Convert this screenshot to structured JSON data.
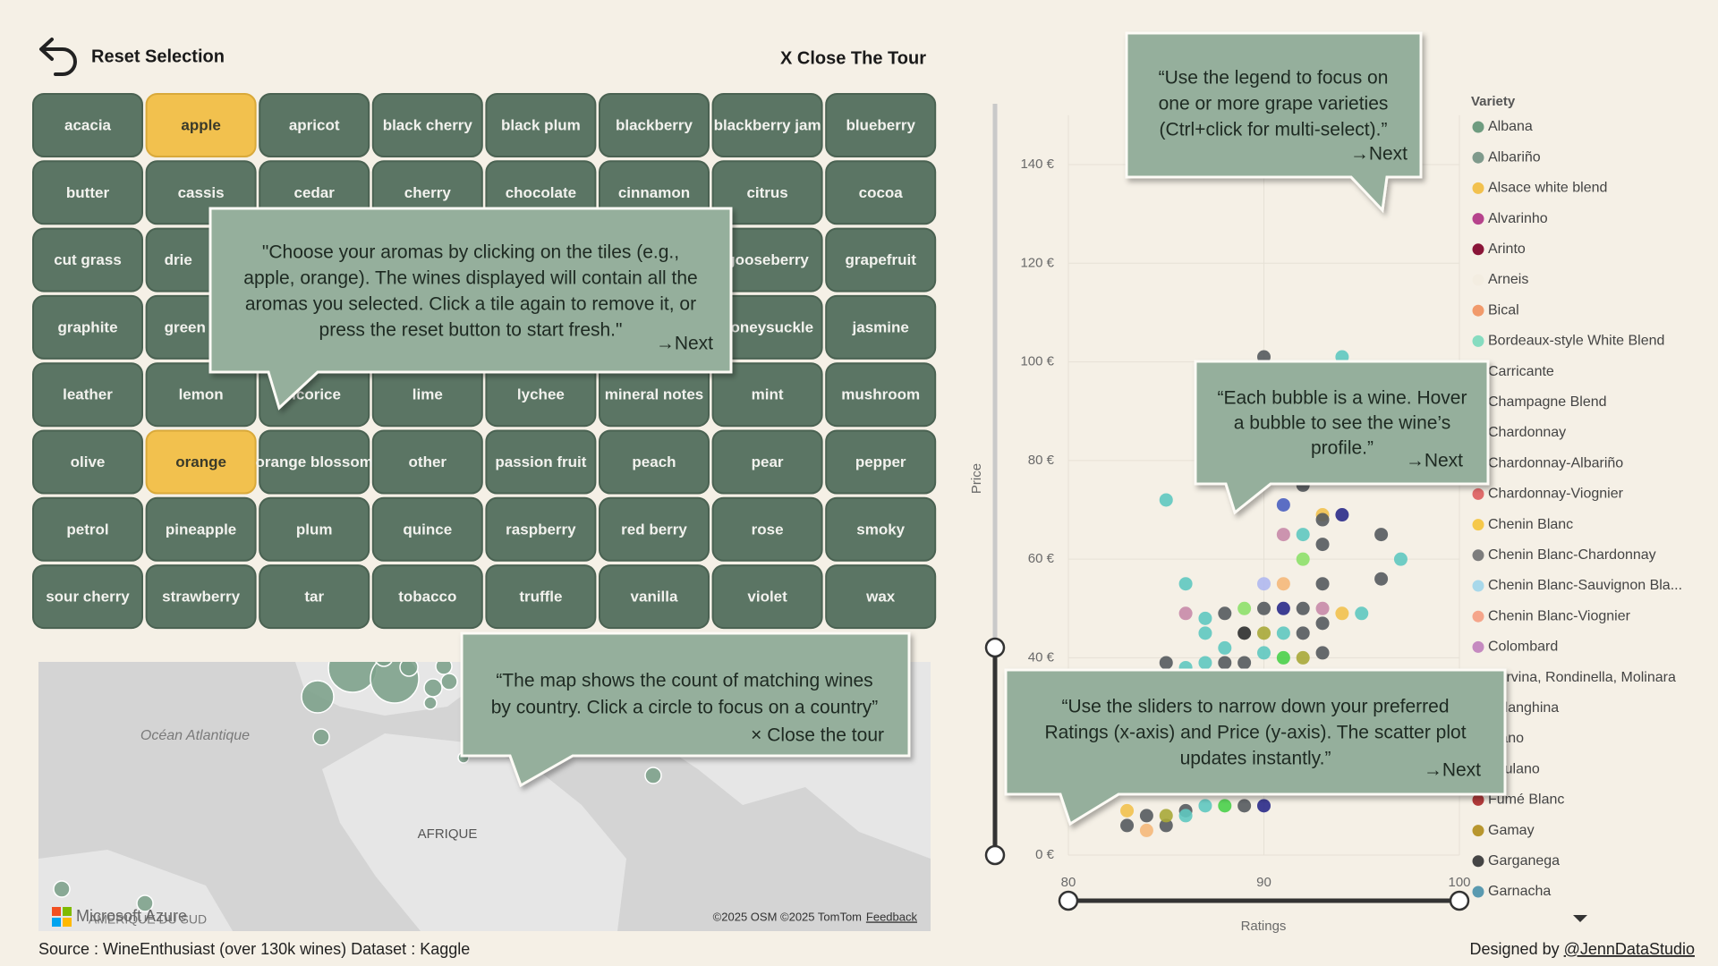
{
  "header": {
    "reset": "Reset Selection",
    "close": "X Close The Tour"
  },
  "tiles": [
    "acacia",
    "apple",
    "apricot",
    "black cherry",
    "black plum",
    "blackberry",
    "blackberry jam",
    "blueberry",
    "butter",
    "cassis",
    "cedar",
    "cherry",
    "chocolate",
    "cinnamon",
    "citrus",
    "cocoa",
    "cut grass",
    "drie",
    null,
    null,
    null,
    null,
    "gooseberry",
    "grapefruit",
    "graphite",
    "green a",
    null,
    null,
    null,
    null,
    "honeysuckle",
    "jasmine",
    "leather",
    "lemon",
    "licorice",
    "lime",
    "lychee",
    "mineral notes",
    "mint",
    "mushroom",
    "olive",
    "orange",
    "orange blossom",
    "other",
    "passion fruit",
    "peach",
    "pear",
    "pepper",
    "petrol",
    "pineapple",
    "plum",
    "quince",
    "raspberry",
    "red berry",
    "rose",
    "smoky",
    "sour cherry",
    "strawberry",
    "tar",
    "tobacco",
    "truffle",
    "vanilla",
    "violet",
    "wax"
  ],
  "selected_tiles": [
    1,
    41
  ],
  "tile_colors": {
    "default": "#5b7564",
    "selected": "#f2c14e"
  },
  "callouts": [
    {
      "lines": [
        "\"Choose your aromas by clicking on the tiles (e.g.,",
        "apple, orange). The wines displayed will contain all the",
        "aromas you selected. Click a tile again to remove it, or",
        "press the reset button to start fresh.\""
      ],
      "action": "→Next"
    },
    {
      "lines": [
        "“Use the legend to focus on",
        "one or more grape varieties",
        "(Ctrl+click for multi-select).”"
      ],
      "action": "→Next"
    },
    {
      "lines": [
        "“Each bubble is a wine. Hover",
        "a bubble to see the wine’s",
        "profile.”"
      ],
      "action": "→Next"
    },
    {
      "lines": [
        "“The map shows the count of matching wines",
        "by country. Click a circle to focus on a country”"
      ],
      "action": "× Close the tour"
    },
    {
      "lines": [
        "“Use the sliders to narrow down your preferred",
        "Ratings (x-axis) and Price (y-axis). The scatter plot",
        "updates instantly.”"
      ],
      "action": "→Next"
    }
  ],
  "map": {
    "ocean": "Océan Atlantique",
    "africa": "AFRIQUE",
    "south_america": "AMÉRIQUE DU SUD",
    "brand": "Microsoft Azure",
    "credits": "©2025 OSM  ©2025 TomTom",
    "feedback": "Feedback"
  },
  "chart_data": {
    "type": "scatter",
    "x_label": "Ratings",
    "y_label": "Price",
    "xlim": [
      80,
      100
    ],
    "xticks": [
      80,
      90,
      100
    ],
    "ylim": [
      0,
      150
    ],
    "yticks": [
      {
        "value": 0,
        "label": "0 €"
      },
      {
        "value": 20,
        "label": "20 €"
      },
      {
        "value": 40,
        "label": "40 €"
      },
      {
        "value": 60,
        "label": "60 €"
      },
      {
        "value": 80,
        "label": "80 €"
      },
      {
        "value": 100,
        "label": "100 €"
      },
      {
        "value": 120,
        "label": "120 €"
      },
      {
        "value": 140,
        "label": "140 €"
      }
    ],
    "grid": true,
    "x": [
      85,
      90,
      94,
      91,
      92,
      93,
      93,
      94,
      91,
      92,
      93,
      96,
      97,
      92,
      96,
      86,
      90,
      91,
      93,
      86,
      87,
      88,
      89,
      90,
      91,
      92,
      93,
      94,
      95,
      93,
      87,
      89,
      90,
      91,
      92,
      88,
      90,
      91,
      92,
      93,
      85,
      86,
      87,
      88,
      89,
      83,
      84,
      85,
      86,
      87,
      88,
      89,
      90,
      83,
      84,
      85,
      86
    ],
    "values": [
      72,
      101,
      101,
      71,
      75,
      69,
      68,
      69,
      65,
      65,
      63,
      65,
      60,
      60,
      56,
      55,
      55,
      55,
      55,
      49,
      48,
      49,
      50,
      50,
      50,
      50,
      50,
      49,
      49,
      47,
      45,
      45,
      45,
      45,
      45,
      42,
      41,
      40,
      40,
      41,
      39,
      38,
      39,
      39,
      39,
      6,
      5,
      6,
      9,
      10,
      10,
      10,
      10,
      9,
      8,
      8,
      8
    ],
    "point_colors": [
      "#5fc8c0",
      "#555a5e",
      "#5fc8c0",
      "#4a5fc0",
      "#555a5e",
      "#f2c14e",
      "#555a5e",
      "#2a2a8a",
      "#c88aa8",
      "#5fc8c0",
      "#555a5e",
      "#555a5e",
      "#5fc8c0",
      "#8ee06a",
      "#555a5e",
      "#5fc8c0",
      "#b0b8f0",
      "#f5b87a",
      "#555a5e",
      "#c88aa8",
      "#5fc8c0",
      "#555a5e",
      "#8ee06a",
      "#555a5e",
      "#2a2a8a",
      "#555a5e",
      "#c88aa8",
      "#f2c14e",
      "#5fc8c0",
      "#555a5e",
      "#5fc8c0",
      "#2e2e2e",
      "#a8a838",
      "#5fc8c0",
      "#555a5e",
      "#5fc8c0",
      "#5fc8c0",
      "#4ad04a",
      "#a8a838",
      "#555a5e",
      "#555a5e",
      "#5fc8c0",
      "#5fc8c0",
      "#555a5e",
      "#555a5e",
      "#555a5e",
      "#f5b87a",
      "#555a5e",
      "#555a5e",
      "#5fc8c0",
      "#4ad04a",
      "#555a5e",
      "#2a2a8a",
      "#f2c14e",
      "#555a5e",
      "#a8a838",
      "#5fc8c0"
    ],
    "legend": {
      "title": "Variety",
      "items": [
        {
          "name": "Albana",
          "color": "#6f9c80"
        },
        {
          "name": "Albariño",
          "color": "#7f9a8c"
        },
        {
          "name": "Alsace white blend",
          "color": "#f2c14e"
        },
        {
          "name": "Alvarinho",
          "color": "#b6438c"
        },
        {
          "name": "Arinto",
          "color": "#8a1538"
        },
        {
          "name": "Arneis",
          "color": "#f3ede1"
        },
        {
          "name": "Bical",
          "color": "#f19a6b"
        },
        {
          "name": "Bordeaux-style White Blend",
          "color": "#86dcc0"
        },
        {
          "name": "Carricante",
          "color": "#5fbfae"
        },
        {
          "name": "Champagne Blend",
          "color": "#c8b8d8"
        },
        {
          "name": "Chardonnay",
          "color": "#7f9a8c"
        },
        {
          "name": "Chardonnay-Albariño",
          "color": "#4a6b5c"
        },
        {
          "name": "Chardonnay-Viognier",
          "color": "#e06c6c"
        },
        {
          "name": "Chenin Blanc",
          "color": "#f5c84a"
        },
        {
          "name": "Chenin Blanc-Chardonnay",
          "color": "#7d7d7d"
        },
        {
          "name": "Chenin Blanc-Sauvignon Bla...",
          "color": "#a8d8ea"
        },
        {
          "name": "Chenin Blanc-Viognier",
          "color": "#f5a58a"
        },
        {
          "name": "Colombard",
          "color": "#c58ac0"
        },
        {
          "name": "Corvina, Rondinella, Molinara",
          "color": "#6a8a9a"
        },
        {
          "name": "Falanghina",
          "color": "#9ab0a0"
        },
        {
          "name": "Fiano",
          "color": "#b0b0b0"
        },
        {
          "name": "Friulano",
          "color": "#8a9ac0"
        },
        {
          "name": "Fumé Blanc",
          "color": "#b23a3a"
        },
        {
          "name": "Gamay",
          "color": "#b8962e"
        },
        {
          "name": "Garganega",
          "color": "#454545"
        },
        {
          "name": "Garnacha",
          "color": "#5a9ab0"
        }
      ]
    }
  },
  "footer": {
    "source": "Source : WineEnthusiast (over 130k wines) Dataset : Kaggle",
    "designed": "Designed by",
    "handle": "@JennDataStudio"
  }
}
